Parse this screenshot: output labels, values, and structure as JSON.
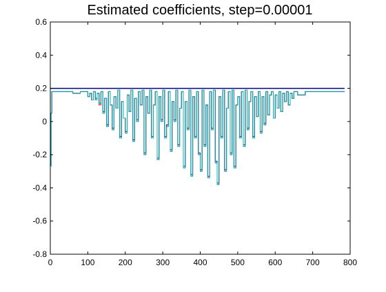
{
  "chart_data": {
    "type": "line",
    "title": "Estimated coefficients, step=0.00001",
    "xlabel": "",
    "ylabel": "",
    "xlim": [
      0,
      800
    ],
    "ylim": [
      -0.8,
      0.6
    ],
    "x_ticks": [
      "0",
      "100",
      "200",
      "300",
      "400",
      "500",
      "600",
      "700",
      "800"
    ],
    "y_ticks": [
      "0.6",
      "0.4",
      "0.2",
      "0",
      "-0.2",
      "-0.4",
      "-0.6",
      "-0.8"
    ],
    "grid": false,
    "legend": "none",
    "reference_line": {
      "y": 0.2,
      "x_range": [
        0,
        785
      ],
      "color": "#000080"
    },
    "series": [
      {
        "color": "#ff0000",
        "x": [
          0,
          2,
          4,
          6,
          50,
          60,
          80,
          95,
          100,
          105,
          110,
          115,
          120,
          125,
          130,
          135,
          140,
          145,
          150,
          155,
          160,
          165,
          170,
          175,
          180,
          185,
          190,
          195,
          200,
          205,
          210,
          215,
          220,
          225,
          230,
          235,
          240,
          245,
          250,
          255,
          260,
          265,
          270,
          275,
          280,
          285,
          290,
          295,
          300,
          305,
          310,
          315,
          320,
          325,
          330,
          335,
          340,
          345,
          350,
          355,
          360,
          365,
          370,
          375,
          380,
          385,
          390,
          395,
          400,
          405,
          410,
          415,
          420,
          425,
          430,
          435,
          440,
          445,
          450,
          455,
          460,
          465,
          470,
          475,
          480,
          485,
          490,
          495,
          500,
          505,
          510,
          515,
          520,
          525,
          530,
          535,
          540,
          545,
          550,
          555,
          560,
          565,
          570,
          575,
          580,
          585,
          590,
          595,
          600,
          605,
          610,
          615,
          620,
          625,
          630,
          635,
          640,
          645,
          650,
          660,
          680,
          700,
          720,
          740,
          760,
          785
        ],
        "y": [
          -0.27,
          0.05,
          0.18,
          0.18,
          0.18,
          0.17,
          0.18,
          0.18,
          0.15,
          0.17,
          0.13,
          0.18,
          0.13,
          0.17,
          0.1,
          0.18,
          0.05,
          0.14,
          -0.03,
          0.18,
          0.1,
          -0.05,
          0.15,
          0.08,
          0.19,
          -0.1,
          0.12,
          0.02,
          -0.07,
          0.16,
          0.06,
          0.19,
          -0.12,
          0.14,
          0.0,
          0.18,
          0.1,
          0.19,
          -0.2,
          0.15,
          0.05,
          0.19,
          -0.1,
          0.1,
          0.18,
          -0.23,
          0.15,
          0.0,
          0.19,
          -0.1,
          -0.03,
          0.18,
          -0.18,
          0.12,
          0.0,
          0.19,
          -0.15,
          0.08,
          0.18,
          -0.28,
          0.12,
          -0.05,
          0.19,
          -0.33,
          0.15,
          -0.1,
          0.18,
          -0.2,
          -0.3,
          0.19,
          -0.15,
          0.1,
          -0.34,
          0.18,
          -0.05,
          0.19,
          -0.25,
          -0.38,
          0.15,
          -0.1,
          0.19,
          -0.3,
          0.08,
          0.18,
          -0.2,
          0.19,
          -0.28,
          0.1,
          0.15,
          -0.1,
          0.18,
          -0.15,
          0.19,
          -0.05,
          0.12,
          0.18,
          -0.1,
          0.15,
          0.03,
          0.18,
          -0.07,
          0.15,
          -0.02,
          0.18,
          0.04,
          0.16,
          0.18,
          0.02,
          0.16,
          0.08,
          0.18,
          0.06,
          0.17,
          0.12,
          0.18,
          0.1,
          0.17,
          0.14,
          0.18,
          0.16,
          0.18,
          0.18,
          0.18,
          0.18,
          0.18,
          0.18
        ]
      },
      {
        "color": "#000080",
        "x": [
          0,
          2,
          4,
          6,
          50,
          60,
          80,
          95,
          100,
          105,
          110,
          115,
          120,
          125,
          130,
          135,
          140,
          145,
          150,
          155,
          160,
          165,
          170,
          175,
          180,
          185,
          190,
          195,
          200,
          205,
          210,
          215,
          220,
          225,
          230,
          235,
          240,
          245,
          250,
          255,
          260,
          265,
          270,
          275,
          280,
          285,
          290,
          295,
          300,
          305,
          310,
          315,
          320,
          325,
          330,
          335,
          340,
          345,
          350,
          355,
          360,
          365,
          370,
          375,
          380,
          385,
          390,
          395,
          400,
          405,
          410,
          415,
          420,
          425,
          430,
          435,
          440,
          445,
          450,
          455,
          460,
          465,
          470,
          475,
          480,
          485,
          490,
          495,
          500,
          505,
          510,
          515,
          520,
          525,
          530,
          535,
          540,
          545,
          550,
          555,
          560,
          565,
          570,
          575,
          580,
          585,
          590,
          595,
          600,
          605,
          610,
          615,
          620,
          625,
          630,
          635,
          640,
          645,
          650,
          660,
          680,
          700,
          720,
          740,
          760,
          785
        ],
        "y": [
          -0.27,
          0.05,
          0.18,
          0.18,
          0.18,
          0.17,
          0.18,
          0.18,
          0.15,
          0.17,
          0.13,
          0.18,
          0.14,
          0.17,
          0.11,
          0.18,
          0.06,
          0.14,
          -0.02,
          0.18,
          0.1,
          -0.04,
          0.15,
          0.08,
          0.19,
          -0.09,
          0.12,
          0.02,
          -0.06,
          0.16,
          0.06,
          0.19,
          -0.11,
          0.14,
          0.01,
          0.18,
          0.1,
          0.19,
          -0.19,
          0.15,
          0.05,
          0.19,
          -0.09,
          0.1,
          0.18,
          -0.22,
          0.15,
          0.01,
          0.19,
          -0.09,
          -0.02,
          0.18,
          -0.17,
          0.12,
          0.01,
          0.19,
          -0.14,
          0.08,
          0.18,
          -0.27,
          0.12,
          -0.04,
          0.19,
          -0.32,
          0.15,
          -0.09,
          0.18,
          -0.19,
          -0.29,
          0.19,
          -0.14,
          0.1,
          -0.33,
          0.18,
          -0.04,
          0.19,
          -0.24,
          -0.37,
          0.15,
          -0.09,
          0.19,
          -0.29,
          0.08,
          0.18,
          -0.19,
          0.19,
          -0.27,
          0.1,
          0.15,
          -0.09,
          0.18,
          -0.14,
          0.19,
          -0.04,
          0.12,
          0.18,
          -0.09,
          0.15,
          0.03,
          0.18,
          -0.06,
          0.15,
          -0.01,
          0.18,
          0.04,
          0.16,
          0.18,
          0.02,
          0.16,
          0.08,
          0.18,
          0.06,
          0.17,
          0.12,
          0.18,
          0.1,
          0.17,
          0.14,
          0.18,
          0.16,
          0.18,
          0.18,
          0.18,
          0.18,
          0.18,
          0.18
        ]
      },
      {
        "color": "#00b4b4",
        "x": [
          0,
          2,
          4,
          6,
          50,
          60,
          80,
          95,
          100,
          105,
          110,
          115,
          120,
          125,
          130,
          135,
          140,
          145,
          150,
          155,
          160,
          165,
          170,
          175,
          180,
          185,
          190,
          195,
          200,
          205,
          210,
          215,
          220,
          225,
          230,
          235,
          240,
          245,
          250,
          255,
          260,
          265,
          270,
          275,
          280,
          285,
          290,
          295,
          300,
          305,
          310,
          315,
          320,
          325,
          330,
          335,
          340,
          345,
          350,
          355,
          360,
          365,
          370,
          375,
          380,
          385,
          390,
          395,
          400,
          405,
          410,
          415,
          420,
          425,
          430,
          435,
          440,
          445,
          450,
          455,
          460,
          465,
          470,
          475,
          480,
          485,
          490,
          495,
          500,
          505,
          510,
          515,
          520,
          525,
          530,
          535,
          540,
          545,
          550,
          555,
          560,
          565,
          570,
          575,
          580,
          585,
          590,
          595,
          600,
          605,
          610,
          615,
          620,
          625,
          630,
          635,
          640,
          645,
          650,
          660,
          680,
          700,
          720,
          740,
          760,
          785
        ],
        "y": [
          -0.27,
          0.05,
          0.18,
          0.18,
          0.18,
          0.17,
          0.18,
          0.18,
          0.15,
          0.17,
          0.13,
          0.18,
          0.13,
          0.17,
          0.11,
          0.18,
          0.05,
          0.14,
          -0.03,
          0.18,
          0.1,
          -0.05,
          0.15,
          0.08,
          0.19,
          -0.1,
          0.12,
          0.02,
          -0.07,
          0.16,
          0.06,
          0.19,
          -0.12,
          0.14,
          0.0,
          0.18,
          0.1,
          0.19,
          -0.2,
          0.15,
          0.05,
          0.19,
          -0.1,
          0.1,
          0.18,
          -0.23,
          0.15,
          0.0,
          0.19,
          -0.1,
          -0.03,
          0.18,
          -0.18,
          0.12,
          0.0,
          0.19,
          -0.15,
          0.08,
          0.18,
          -0.28,
          0.12,
          -0.05,
          0.19,
          -0.33,
          0.15,
          -0.1,
          0.18,
          -0.2,
          -0.3,
          0.19,
          -0.15,
          0.1,
          -0.34,
          0.18,
          -0.05,
          0.19,
          -0.25,
          -0.38,
          0.15,
          -0.1,
          0.19,
          -0.3,
          0.08,
          0.18,
          -0.2,
          0.19,
          -0.28,
          0.1,
          0.15,
          -0.1,
          0.18,
          -0.15,
          0.19,
          -0.05,
          0.12,
          0.18,
          -0.1,
          0.15,
          0.03,
          0.18,
          -0.07,
          0.15,
          -0.02,
          0.18,
          0.04,
          0.16,
          0.18,
          0.02,
          0.16,
          0.08,
          0.18,
          0.06,
          0.17,
          0.12,
          0.18,
          0.1,
          0.17,
          0.14,
          0.18,
          0.16,
          0.18,
          0.18,
          0.18,
          0.18,
          0.18,
          0.18
        ]
      }
    ]
  }
}
